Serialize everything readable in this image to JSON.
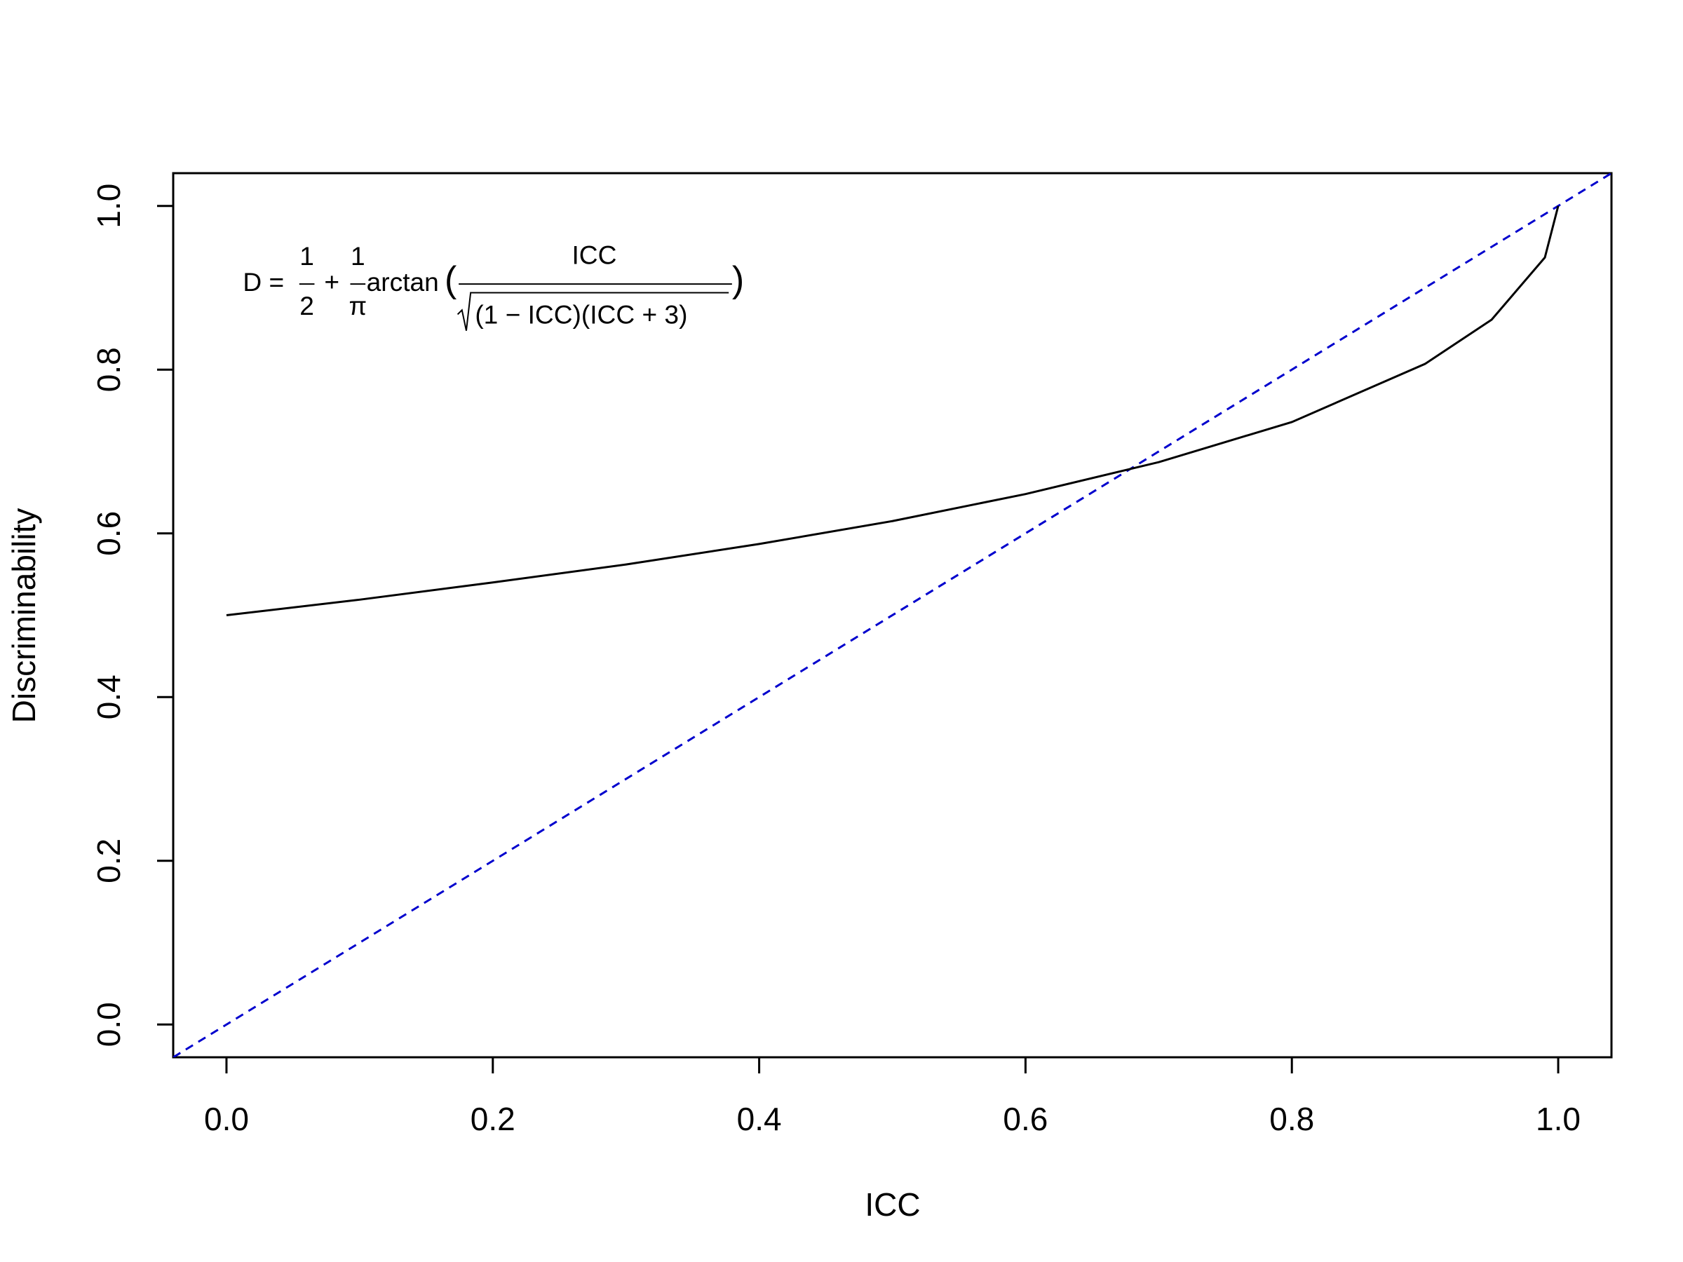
{
  "chart_data": {
    "type": "line",
    "xlabel": "ICC",
    "ylabel": "Discriminability",
    "x": [
      0,
      0.1,
      0.2,
      0.3,
      0.4,
      0.5,
      0.6,
      0.7,
      0.8,
      0.9,
      0.95,
      0.99,
      1.0
    ],
    "values": [
      0.5,
      0.519,
      0.54,
      0.562,
      0.587,
      0.615,
      0.648,
      0.687,
      0.736,
      0.807,
      0.861,
      0.937,
      1.0
    ],
    "color": "#000000",
    "abline": {
      "intercept": 0,
      "slope": 1,
      "color": "#0000cd",
      "dashed": true
    },
    "xlim": [
      -0.04,
      1.04
    ],
    "ylim": [
      -0.04,
      1.04
    ],
    "xticks": [
      {
        "value": 0,
        "label": "0.0"
      },
      0.2,
      0.4,
      0.6,
      0.8,
      {
        "value": 1,
        "label": "1.0"
      }
    ],
    "yticks": [
      {
        "value": 0,
        "label": "0.0"
      },
      0.2,
      0.4,
      0.6,
      0.8,
      {
        "value": 1,
        "label": "1.0"
      }
    ],
    "annotation": [
      "D =",
      "1",
      "2",
      "+",
      "1",
      "π",
      "arctan",
      "(",
      "ICC",
      "(1 − ICC)(ICC + 3)",
      ")"
    ]
  }
}
